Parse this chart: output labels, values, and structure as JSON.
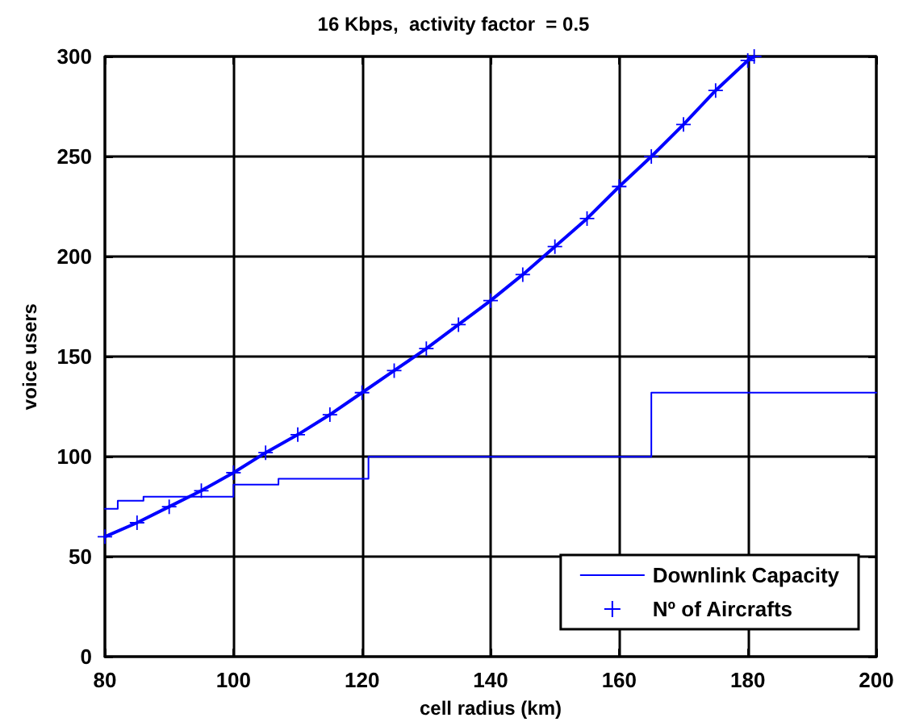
{
  "chart_data": {
    "type": "line",
    "title": "16 Kbps,  activity factor  = 0.5",
    "xlabel": "cell radius (km)",
    "ylabel": "voice users",
    "xlim": [
      80,
      200
    ],
    "xticks": [
      80,
      100,
      120,
      140,
      160,
      180,
      200
    ],
    "ylim": [
      0,
      300
    ],
    "yticks": [
      0,
      50,
      100,
      150,
      200,
      250,
      300
    ],
    "grid": true,
    "legend": "bottom right",
    "series": [
      {
        "name": "Downlink Capacity",
        "type": "step",
        "color": "#0000ff",
        "marker": "none",
        "x": [
          80,
          82,
          86,
          100,
          107,
          121,
          165,
          200
        ],
        "values": [
          74,
          78,
          80,
          86,
          89,
          100,
          132,
          132
        ]
      },
      {
        "name": "Nº of Aircrafts",
        "color": "#0000ff",
        "marker": "cross",
        "x": [
          80,
          85,
          90,
          95,
          100,
          105,
          110,
          115,
          120,
          125,
          130,
          135,
          140,
          145,
          150,
          155,
          160,
          165,
          170,
          175,
          180,
          181
        ],
        "values": [
          60,
          67,
          75,
          83,
          92,
          102,
          111,
          121,
          132,
          143,
          154,
          166,
          178,
          191,
          205,
          219,
          235,
          250,
          266,
          283,
          298,
          300
        ]
      }
    ]
  }
}
